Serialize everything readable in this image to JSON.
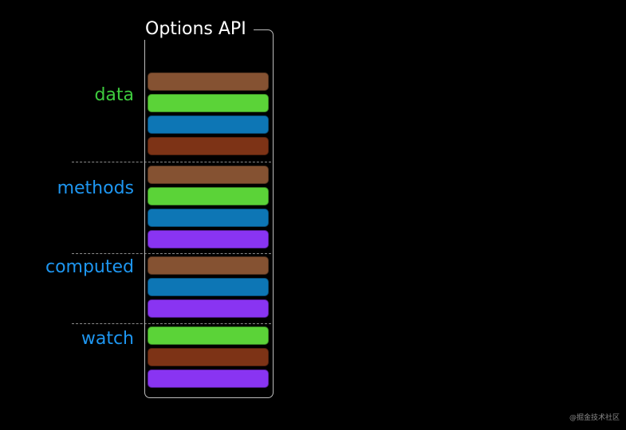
{
  "title": "Options API",
  "watermark": "@掘金技术社区",
  "colors": {
    "brown": "#855232",
    "green": "#5BD338",
    "blue": "#0D76B5",
    "rust": "#7D3316",
    "purple": "#8934F2",
    "label_green": "#3ECC3E",
    "label_blue": "#1E96F0",
    "title_color": "#ffffff",
    "box_border": "#bdbdbd",
    "separator": "#8a8a8a",
    "background": "#000000",
    "watermark_color": "#8a8a8a"
  },
  "sections": [
    {
      "label": "data",
      "label_color": "label_green",
      "bars": [
        "brown",
        "green",
        "blue",
        "rust"
      ]
    },
    {
      "label": "methods",
      "label_color": "label_blue",
      "bars": [
        "brown",
        "green",
        "blue",
        "purple"
      ]
    },
    {
      "label": "computed",
      "label_color": "label_blue",
      "bars": [
        "brown",
        "blue",
        "purple"
      ]
    },
    {
      "label": "watch",
      "label_color": "label_blue",
      "bars": [
        "green",
        "rust",
        "purple"
      ]
    }
  ]
}
